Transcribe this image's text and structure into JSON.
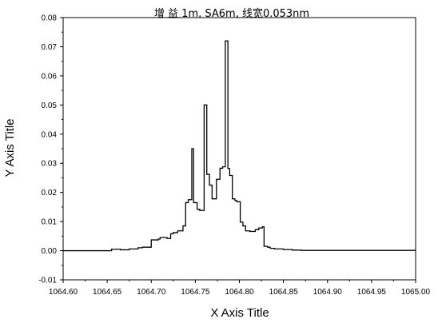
{
  "chart_data": {
    "type": "line",
    "title": "增 益   1m, SA6m, 线宽0.053nm",
    "xlabel": "X Axis Title",
    "ylabel": "Y Axis Title",
    "xlim": [
      1064.6,
      1065.0
    ],
    "ylim": [
      -0.01,
      0.08
    ],
    "x_ticks": [
      "1064.60",
      "1064.65",
      "1064.70",
      "1064.75",
      "1064.80",
      "1064.85",
      "1064.90",
      "1064.95",
      "1065.00"
    ],
    "y_ticks": [
      "-0.01",
      "0.00",
      "0.01",
      "0.02",
      "0.03",
      "0.04",
      "0.05",
      "0.06",
      "0.07",
      "0.08"
    ],
    "grid": false,
    "legend": "none",
    "step": "post",
    "series": [
      {
        "color": "#000000",
        "x": [
          1064.6,
          1064.655,
          1064.665,
          1064.675,
          1064.685,
          1064.69,
          1064.7,
          1064.708,
          1064.71,
          1064.718,
          1064.722,
          1064.725,
          1064.73,
          1064.736,
          1064.739,
          1064.742,
          1064.746,
          1064.748,
          1064.752,
          1064.755,
          1064.76,
          1064.763,
          1064.766,
          1064.769,
          1064.771,
          1064.774,
          1064.778,
          1064.781,
          1064.784,
          1064.787,
          1064.789,
          1064.792,
          1064.795,
          1064.797,
          1064.799,
          1064.801,
          1064.804,
          1064.807,
          1064.812,
          1064.818,
          1064.822,
          1064.826,
          1064.828,
          1064.832,
          1064.835,
          1064.84,
          1064.85,
          1064.86,
          1064.87,
          1065.0
        ],
        "y": [
          0.0,
          0.0005,
          0.0003,
          0.0006,
          0.001,
          0.0012,
          0.0037,
          0.004,
          0.0045,
          0.0042,
          0.0058,
          0.0062,
          0.0068,
          0.0085,
          0.0165,
          0.0175,
          0.035,
          0.0165,
          0.0142,
          0.0138,
          0.05,
          0.0262,
          0.0225,
          0.0178,
          0.0178,
          0.0245,
          0.0283,
          0.0288,
          0.072,
          0.0282,
          0.0258,
          0.0178,
          0.0172,
          0.0168,
          0.0168,
          0.0098,
          0.0085,
          0.0068,
          0.0066,
          0.0072,
          0.0078,
          0.0082,
          0.0015,
          0.0012,
          0.0008,
          0.0006,
          0.0004,
          0.0002,
          0.0001,
          0.0
        ]
      }
    ]
  }
}
